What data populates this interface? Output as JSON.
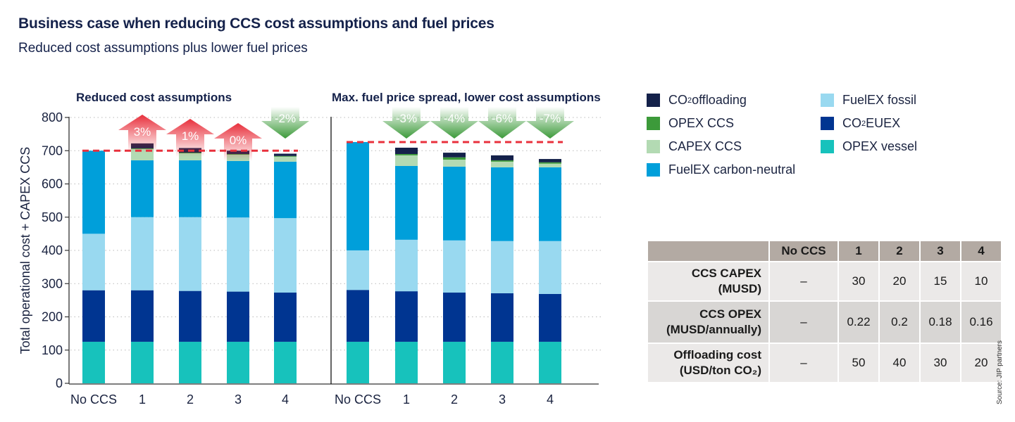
{
  "header": {
    "title": "Business case when reducing CCS cost assumptions and fuel prices",
    "subtitle": "Reduced cost assumptions plus lower fuel prices"
  },
  "colors": {
    "CO2 offloading": "#14214a",
    "OPEX CCS": "#3c9a3a",
    "CAPEX CCS": "#b3dab3",
    "FuelEX carbon-neutral": "#009fda",
    "FuelEX fossil": "#99d9f0",
    "CO2 EUEX": "#003591",
    "OPEX vessel": "#17c2bc",
    "baseline": "#e8303c",
    "arrow_up": "#e8303c",
    "arrow_down": "#3c9a3a"
  },
  "chart_data": [
    {
      "type": "bar",
      "stacked": true,
      "title": "Reduced cost assumptions",
      "ylabel": "Total operational cost + CAPEX CCS",
      "ylim": [
        0,
        800
      ],
      "yticks": [
        "0",
        "100",
        "200",
        "300",
        "400",
        "500",
        "600",
        "700",
        "800"
      ],
      "grid": true,
      "categories": [
        "No CCS",
        "1",
        "2",
        "3",
        "4"
      ],
      "series": [
        {
          "name": "OPEX vessel",
          "values": [
            125,
            125,
            125,
            125,
            125
          ]
        },
        {
          "name": "CO2 EUEX",
          "values": [
            155,
            155,
            153,
            151,
            148
          ]
        },
        {
          "name": "FuelEX fossil",
          "values": [
            170,
            220,
            222,
            223,
            224
          ]
        },
        {
          "name": "FuelEX carbon-neutral",
          "values": [
            250,
            171,
            171,
            170,
            170
          ]
        },
        {
          "name": "CAPEX CCS",
          "values": [
            0,
            34,
            21,
            19,
            15
          ]
        },
        {
          "name": "OPEX CCS",
          "values": [
            0,
            2,
            2,
            2,
            2
          ]
        },
        {
          "name": "CO2 offloading",
          "values": [
            0,
            15,
            14,
            10,
            7
          ]
        }
      ],
      "baseline": 700,
      "annotations": [
        {
          "category": "1",
          "label": "3%",
          "direction": "up"
        },
        {
          "category": "2",
          "label": "1%",
          "direction": "up"
        },
        {
          "category": "3",
          "label": "0%",
          "direction": "up"
        },
        {
          "category": "4",
          "label": "-2%",
          "direction": "down"
        }
      ]
    },
    {
      "type": "bar",
      "stacked": true,
      "title": "Max. fuel price spread, lower cost assumptions",
      "ylim": [
        0,
        800
      ],
      "grid": true,
      "categories": [
        "No CCS",
        "1",
        "2",
        "3",
        "4"
      ],
      "series": [
        {
          "name": "OPEX vessel",
          "values": [
            125,
            125,
            125,
            125,
            125
          ]
        },
        {
          "name": "CO2 EUEX",
          "values": [
            156,
            152,
            148,
            146,
            144
          ]
        },
        {
          "name": "FuelEX fossil",
          "values": [
            119,
            155,
            157,
            157,
            159
          ]
        },
        {
          "name": "FuelEX carbon-neutral",
          "values": [
            326,
            222,
            222,
            222,
            222
          ]
        },
        {
          "name": "CAPEX CCS",
          "values": [
            0,
            32,
            21,
            17,
            11
          ]
        },
        {
          "name": "OPEX CCS",
          "values": [
            0,
            4,
            7,
            4,
            4
          ]
        },
        {
          "name": "CO2 offloading",
          "values": [
            0,
            19,
            14,
            15,
            10
          ]
        }
      ],
      "baseline": 726,
      "annotations": [
        {
          "category": "1",
          "label": "-3%",
          "direction": "down"
        },
        {
          "category": "2",
          "label": "-4%",
          "direction": "down"
        },
        {
          "category": "3",
          "label": "-6%",
          "direction": "down"
        },
        {
          "category": "4",
          "label": "-7%",
          "direction": "down"
        }
      ]
    }
  ],
  "legend": {
    "items": [
      {
        "label": "CO",
        "sub": "2",
        "rest": " offloading",
        "series": "CO2 offloading"
      },
      {
        "label": "OPEX CCS",
        "sub": "",
        "rest": "",
        "series": "OPEX CCS"
      },
      {
        "label": "CAPEX CCS",
        "sub": "",
        "rest": "",
        "series": "CAPEX CCS"
      },
      {
        "label": "FuelEX carbon-neutral",
        "sub": "",
        "rest": "",
        "series": "FuelEX carbon-neutral"
      },
      {
        "label": "FuelEX fossil",
        "sub": "",
        "rest": "",
        "series": "FuelEX fossil"
      },
      {
        "label": "CO",
        "sub": "2",
        "rest": " EUEX",
        "series": "CO2 EUEX"
      },
      {
        "label": "OPEX vessel",
        "sub": "",
        "rest": "",
        "series": "OPEX vessel"
      }
    ]
  },
  "table": {
    "headers": [
      "",
      "No CCS",
      "1",
      "2",
      "3",
      "4"
    ],
    "rows": [
      {
        "label1": "CCS CAPEX",
        "label2": "(MUSD)",
        "values": [
          "–",
          "30",
          "20",
          "15",
          "10"
        ]
      },
      {
        "label1": "CCS OPEX",
        "label2": "(MUSD/annually)",
        "values": [
          "–",
          "0.22",
          "0.2",
          "0.18",
          "0.16"
        ]
      },
      {
        "label1": "Offloading cost",
        "label2": "(USD/ton CO₂)",
        "values": [
          "–",
          "50",
          "40",
          "30",
          "20"
        ]
      }
    ]
  },
  "source": "Source: JIP partners"
}
